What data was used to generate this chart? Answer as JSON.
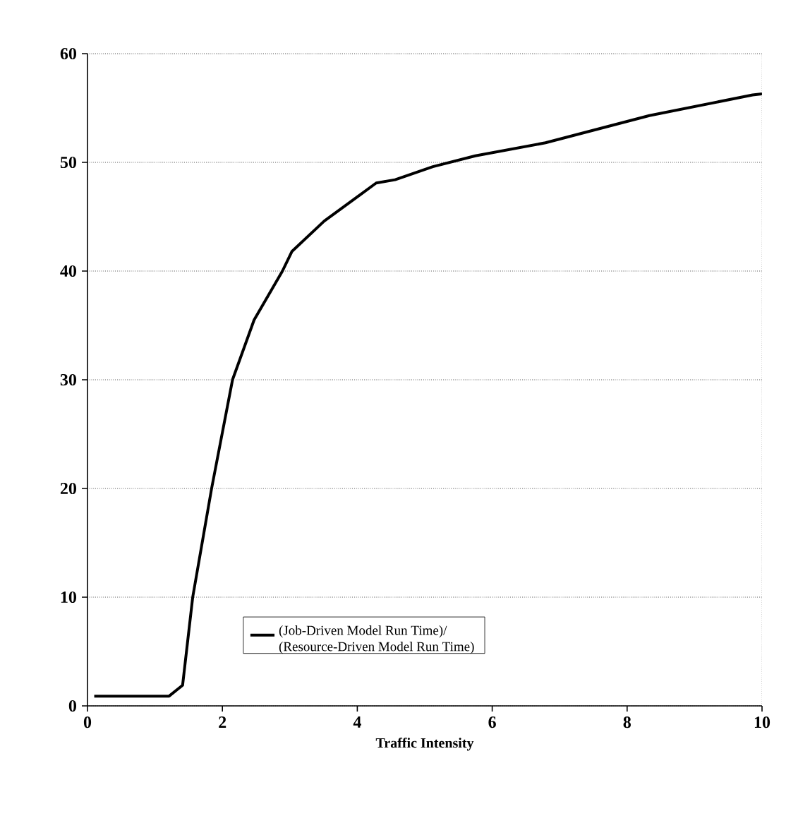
{
  "chart_data": {
    "type": "line",
    "xlabel": "Traffic Intensity",
    "series": [
      {
        "name": "(Job-Driven Model Run Time)/ (Resource-Driven Model Run Time)",
        "color": "#000000",
        "x": [
          0.1,
          0.5,
          1.0,
          1.21,
          1.41,
          1.56,
          1.84,
          2.15,
          2.47,
          2.89,
          3.03,
          3.51,
          4.28,
          4.56,
          5.12,
          5.75,
          6.79,
          8.33,
          9.86,
          10
        ],
        "values": [
          0.9,
          0.9,
          0.9,
          0.9,
          1.9,
          10,
          20,
          30,
          35.5,
          40,
          41.8,
          44.6,
          48.1,
          48.4,
          49.6,
          50.6,
          51.8,
          54.3,
          56.2,
          56.3
        ]
      }
    ],
    "xlim": [
      0,
      10
    ],
    "xticks": [
      0,
      2,
      4,
      6,
      8,
      10
    ],
    "ylim": [
      0,
      60
    ],
    "yticks": [
      0,
      10,
      20,
      30,
      40,
      50,
      60
    ],
    "grid": "y",
    "legend": "bottom",
    "line_style": "solid",
    "marker": "none"
  }
}
